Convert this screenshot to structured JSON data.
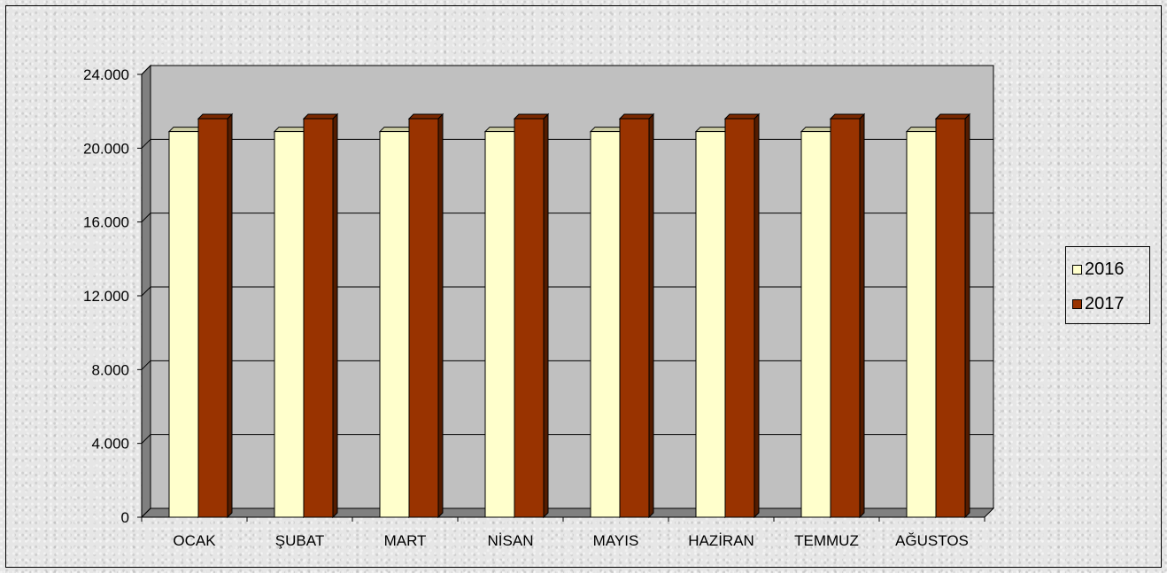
{
  "chart_data": {
    "type": "bar",
    "title": "",
    "xlabel": "",
    "ylabel": "",
    "categories": [
      "OCAK",
      "ŞUBAT",
      "MART",
      "NİSAN",
      "MAYIS",
      "HAZİRAN",
      "TEMMUZ",
      "AĞUSTOS"
    ],
    "series": [
      {
        "name": "2016",
        "values": [
          20900,
          20900,
          20900,
          20900,
          20900,
          20900,
          20900,
          20900
        ],
        "color": "#ffffcc"
      },
      {
        "name": "2017",
        "values": [
          21600,
          21600,
          21600,
          21600,
          21600,
          21600,
          21600,
          21600
        ],
        "color": "#993300"
      }
    ],
    "ylim": [
      0,
      24000
    ],
    "yticks": [
      "0",
      "4.000",
      "8.000",
      "12.000",
      "16.000",
      "20.000",
      "24.000"
    ],
    "grid": true,
    "legend_position": "right",
    "plot_background": "#c0c0c0"
  }
}
